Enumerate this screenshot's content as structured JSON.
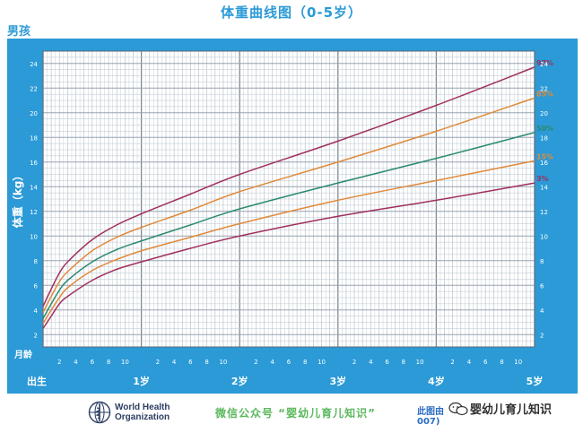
{
  "page": {
    "title": "体重曲线图（0-5岁）",
    "subtitle": "男孩"
  },
  "colors": {
    "frame": "#2b9ad6",
    "grid": "#b9c4ce",
    "p97": "#a0305e",
    "p85": "#e08a3a",
    "p50": "#2a8a70",
    "p15": "#e08a3a",
    "p3": "#a0305e"
  },
  "chart_data": {
    "type": "line",
    "title": "体重曲线图（0-5岁）",
    "subtitle": "男孩",
    "ylabel": "体重（kg）",
    "xlabel": "月龄",
    "ylim": [
      1,
      25
    ],
    "xlim": [
      0,
      60
    ],
    "y_ticks": [
      2,
      4,
      6,
      8,
      10,
      12,
      14,
      16,
      18,
      20,
      22,
      24
    ],
    "x_major_labels": [
      {
        "month": 0,
        "label": "出生"
      },
      {
        "month": 12,
        "label": "1岁"
      },
      {
        "month": 24,
        "label": "2岁"
      },
      {
        "month": 36,
        "label": "3岁"
      },
      {
        "month": 48,
        "label": "4岁"
      },
      {
        "month": 60,
        "label": "5岁"
      }
    ],
    "x_minor_labels": [
      "2",
      "4",
      "6",
      "8",
      "10"
    ],
    "grid": true,
    "series": [
      {
        "name": "97%",
        "color_key": "p97",
        "x": [
          0,
          1,
          2,
          3,
          6,
          9,
          12,
          18,
          24,
          36,
          48,
          60
        ],
        "values": [
          4.3,
          5.7,
          7.0,
          7.9,
          9.7,
          10.9,
          11.8,
          13.4,
          15.0,
          17.7,
          20.6,
          23.7
        ]
      },
      {
        "name": "85%",
        "color_key": "p85",
        "x": [
          0,
          1,
          2,
          3,
          6,
          9,
          12,
          18,
          24,
          36,
          48,
          60
        ],
        "values": [
          3.8,
          5.1,
          6.3,
          7.1,
          8.8,
          9.9,
          10.7,
          12.1,
          13.6,
          16.0,
          18.5,
          21.2
        ]
      },
      {
        "name": "50%",
        "color_key": "p50",
        "x": [
          0,
          1,
          2,
          3,
          6,
          9,
          12,
          18,
          24,
          36,
          48,
          60
        ],
        "values": [
          3.3,
          4.5,
          5.6,
          6.4,
          7.9,
          8.9,
          9.6,
          10.9,
          12.2,
          14.3,
          16.3,
          18.4
        ]
      },
      {
        "name": "15%",
        "color_key": "p15",
        "x": [
          0,
          1,
          2,
          3,
          6,
          9,
          12,
          18,
          24,
          36,
          48,
          60
        ],
        "values": [
          2.9,
          4.0,
          5.0,
          5.8,
          7.2,
          8.1,
          8.8,
          9.9,
          11.0,
          12.9,
          14.5,
          16.1
        ]
      },
      {
        "name": "3%",
        "color_key": "p3",
        "x": [
          0,
          1,
          2,
          3,
          6,
          9,
          12,
          18,
          24,
          36,
          48,
          60
        ],
        "values": [
          2.5,
          3.5,
          4.5,
          5.1,
          6.4,
          7.3,
          7.9,
          9.0,
          10.0,
          11.6,
          12.9,
          14.3
        ]
      }
    ]
  },
  "footer": {
    "who_line1": "World Health",
    "who_line2": "Organization",
    "wechat": "微信公众号 “婴幼儿育儿知识”",
    "source": "此图由",
    "source_tail": "007)",
    "watermark": "婴幼儿育儿知识"
  }
}
